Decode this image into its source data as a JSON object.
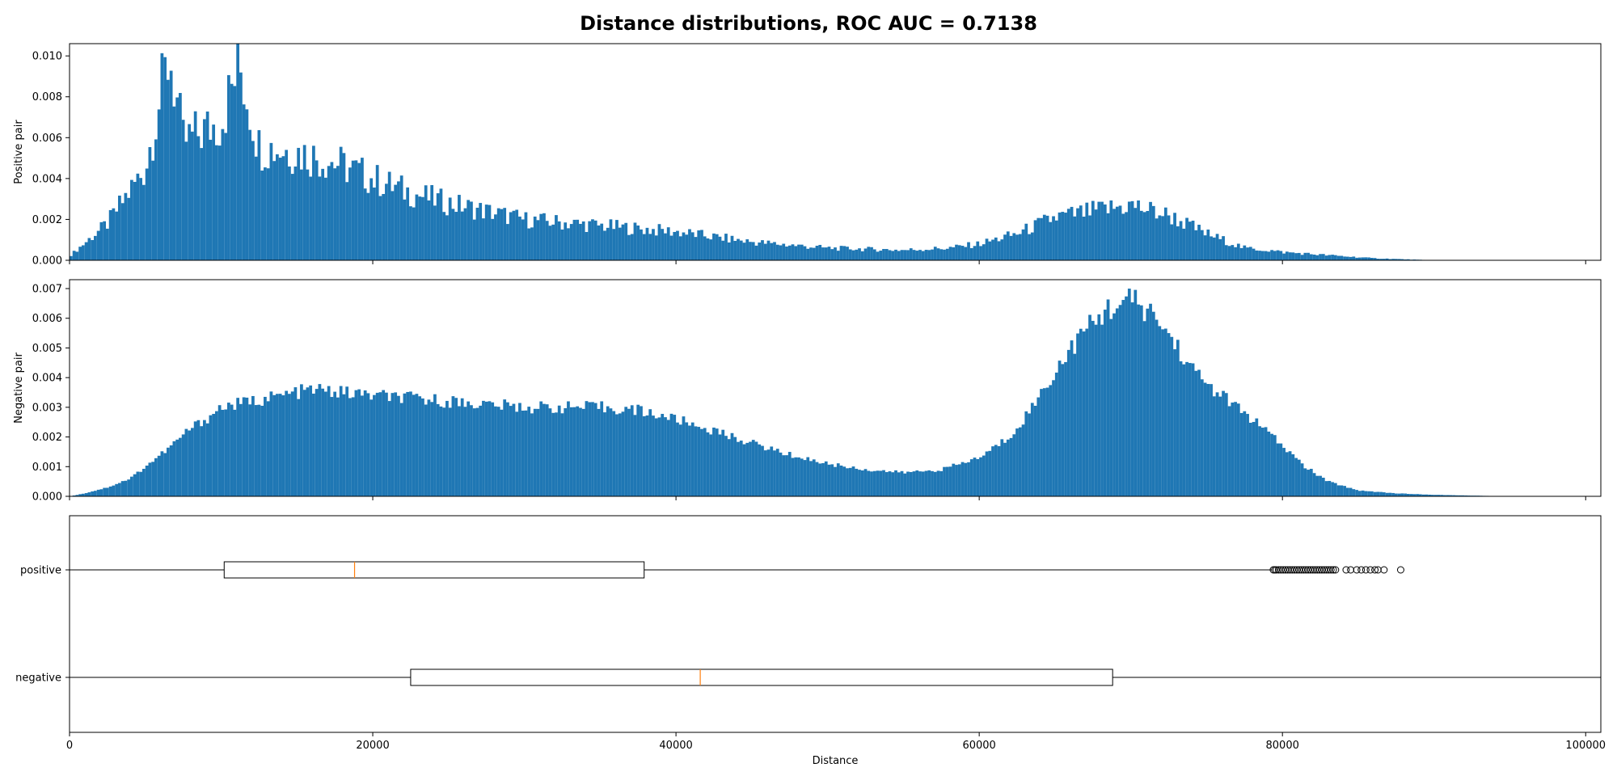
{
  "chart_data": [
    {
      "type": "bar",
      "subtype": "histogram",
      "title": "Distance distributions, ROC AUC = 0.7138",
      "ylabel": "Positive pair",
      "xlim": [
        0,
        101000
      ],
      "ylim": [
        0,
        0.0106
      ],
      "yticks": [
        "0.000",
        "0.002",
        "0.004",
        "0.006",
        "0.008",
        "0.010"
      ],
      "color": "#1f77b4",
      "bin_width": 200,
      "x": [
        0,
        2500,
        5000,
        6600,
        7500,
        10000,
        11200,
        12500,
        15000,
        17500,
        20000,
        22500,
        25000,
        30000,
        35000,
        40000,
        45000,
        50000,
        55000,
        58000,
        60000,
        62500,
        65000,
        67500,
        70000,
        72500,
        75000,
        77500,
        79000,
        80000,
        82000,
        84000,
        86000,
        88000,
        90000,
        95000,
        100000
      ],
      "values": [
        0.0002,
        0.0018,
        0.0045,
        0.0101,
        0.0058,
        0.0068,
        0.0096,
        0.0056,
        0.0053,
        0.0048,
        0.004,
        0.0033,
        0.0028,
        0.002,
        0.0017,
        0.0014,
        0.0009,
        0.0006,
        0.0005,
        0.0006,
        0.0008,
        0.0013,
        0.0021,
        0.0024,
        0.0027,
        0.0022,
        0.0013,
        0.0006,
        0.0005,
        0.0004,
        0.0003,
        0.0002,
        0.0001,
        5e-05,
        0.0,
        0.0,
        0.0
      ]
    },
    {
      "type": "bar",
      "subtype": "histogram",
      "ylabel": "Negative pair",
      "xlim": [
        0,
        101000
      ],
      "ylim": [
        0,
        0.0073
      ],
      "yticks": [
        "0.000",
        "0.001",
        "0.002",
        "0.003",
        "0.004",
        "0.005",
        "0.006",
        "0.007"
      ],
      "color": "#1f77b4",
      "bin_width": 200,
      "x": [
        0,
        1000,
        2500,
        4000,
        5000,
        6500,
        8000,
        9000,
        10000,
        12000,
        14000,
        16000,
        18000,
        20000,
        22500,
        25000,
        27500,
        30000,
        32500,
        35000,
        37500,
        40000,
        42500,
        45000,
        47500,
        50000,
        52500,
        55000,
        57500,
        60000,
        62000,
        63500,
        65000,
        66500,
        68000,
        69000,
        70000,
        71000,
        72000,
        73000,
        74000,
        75500,
        77000,
        78500,
        80000,
        81500,
        83000,
        85000,
        87500,
        90000,
        93000,
        95000,
        100000
      ],
      "values": [
        0.0,
        0.0001,
        0.0003,
        0.0006,
        0.001,
        0.0016,
        0.0023,
        0.0026,
        0.003,
        0.0032,
        0.0034,
        0.0036,
        0.0035,
        0.0034,
        0.0033,
        0.0032,
        0.0031,
        0.003,
        0.003,
        0.003,
        0.0029,
        0.0026,
        0.0022,
        0.0018,
        0.0014,
        0.0011,
        0.0009,
        0.0008,
        0.0009,
        0.0013,
        0.002,
        0.003,
        0.0042,
        0.0053,
        0.0061,
        0.0065,
        0.0066,
        0.0063,
        0.0058,
        0.0051,
        0.0043,
        0.0036,
        0.003,
        0.0024,
        0.0017,
        0.001,
        0.0005,
        0.0002,
        0.0001,
        5e-05,
        2e-05,
        0.0,
        0.0
      ]
    },
    {
      "type": "box",
      "orientation": "horizontal",
      "xlabel": "Distance",
      "xlim": [
        0,
        101000
      ],
      "xticks": [
        0,
        20000,
        40000,
        60000,
        80000,
        100000
      ],
      "median_color": "#ff7f0e",
      "series": [
        {
          "name": "positive",
          "whisker_low": 0,
          "q1": 10200,
          "median": 18800,
          "q3": 37900,
          "whisker_high": 79300,
          "outliers": [
            79400,
            79500,
            79600,
            79750,
            79900,
            80050,
            80200,
            80350,
            80500,
            80650,
            80800,
            80950,
            81100,
            81250,
            81400,
            81550,
            81700,
            81850,
            82000,
            82150,
            82300,
            82450,
            82600,
            82750,
            82900,
            83050,
            83200,
            83350,
            83500,
            84200,
            84500,
            84900,
            85200,
            85500,
            85800,
            86100,
            86300,
            86700,
            87800
          ]
        },
        {
          "name": "negative",
          "whisker_low": 0,
          "q1": 22500,
          "median": 41600,
          "q3": 68800,
          "whisker_high": 101000,
          "outliers": []
        }
      ]
    }
  ]
}
